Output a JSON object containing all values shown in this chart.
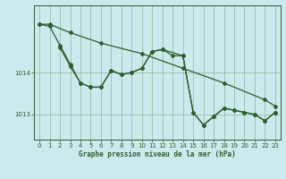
{
  "title": "Graphe pression niveau de la mer (hPa)",
  "background_color": "#cce9ee",
  "grid_color": "#88bb99",
  "line_color": "#2d5e2d",
  "xlim": [
    -0.5,
    23.5
  ],
  "ylim": [
    1012.4,
    1015.6
  ],
  "yticks": [
    1013,
    1014
  ],
  "ytick_labels": [
    "1013",
    "1014"
  ],
  "xticks": [
    0,
    1,
    2,
    3,
    4,
    5,
    6,
    7,
    8,
    9,
    10,
    11,
    12,
    13,
    14,
    15,
    16,
    17,
    18,
    19,
    20,
    21,
    22,
    23
  ],
  "series1": {
    "x": [
      0,
      1,
      3,
      6,
      10,
      14,
      18,
      22,
      23
    ],
    "y": [
      1015.15,
      1015.15,
      1014.95,
      1014.7,
      1014.45,
      1014.1,
      1013.75,
      1013.35,
      1013.2
    ]
  },
  "series2": {
    "x": [
      0,
      1,
      2,
      3,
      4,
      5,
      6,
      7,
      8,
      9,
      10,
      11,
      12,
      13,
      14,
      15,
      16,
      17,
      18,
      19,
      20,
      21,
      22,
      23
    ],
    "y": [
      1015.15,
      1015.1,
      1014.65,
      1014.2,
      1013.75,
      1013.65,
      1013.65,
      1014.05,
      1013.95,
      1014.0,
      1014.1,
      1014.5,
      1014.55,
      1014.4,
      1014.4,
      1013.05,
      1012.75,
      1012.95,
      1013.15,
      1013.1,
      1013.05,
      1013.0,
      1012.85,
      1013.05
    ]
  },
  "series3": {
    "x": [
      2,
      3,
      4,
      5,
      6,
      7,
      8,
      9,
      10,
      11,
      12,
      14,
      15,
      16,
      17,
      18,
      19,
      20,
      21,
      22,
      23
    ],
    "y": [
      1014.6,
      1014.15,
      1013.75,
      1013.65,
      1013.65,
      1014.05,
      1013.95,
      1014.0,
      1014.1,
      1014.5,
      1014.55,
      1014.4,
      1013.05,
      1012.75,
      1012.95,
      1013.15,
      1013.1,
      1013.05,
      1013.0,
      1012.85,
      1013.05
    ]
  },
  "marker_style": "D",
  "marker_size": 2.0,
  "line_width": 0.9
}
